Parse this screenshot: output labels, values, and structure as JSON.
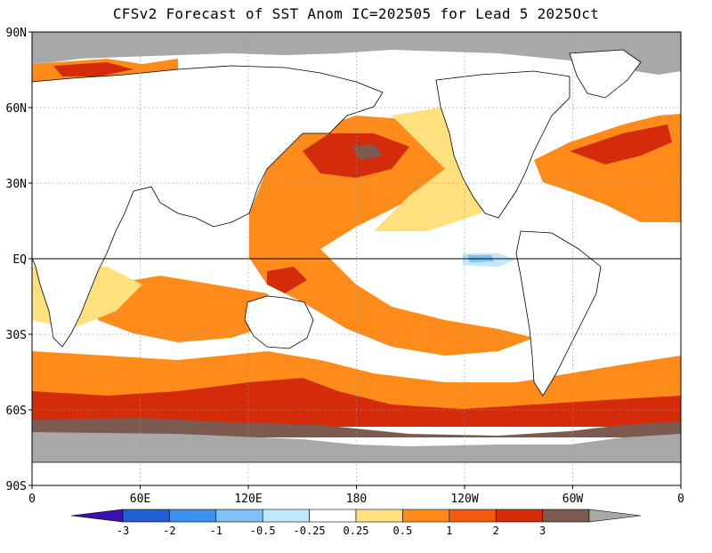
{
  "title": "CFSv2 Forecast of SST Anom IC=202505 for Lead 5 2025Oct",
  "y_ticks": [
    "90N",
    "60N",
    "30N",
    "EQ",
    "30S",
    "60S",
    "90S"
  ],
  "x_ticks": [
    "0",
    "60E",
    "120E",
    "180",
    "120W",
    "60W",
    "0"
  ],
  "colorbar": {
    "labels": [
      "-3",
      "-2",
      "-1",
      "-0.5",
      "-0.25",
      "0.25",
      "0.5",
      "1",
      "2",
      "3"
    ],
    "colors": [
      "#3c10b4",
      "#1f5fcf",
      "#3d8ff0",
      "#7fc1f5",
      "#bfe9fb",
      "#ffffff",
      "#ffe07f",
      "#ff8c1a",
      "#f25a10",
      "#d42b0a",
      "#7d5a50",
      "#a8a8a8"
    ]
  },
  "land_color": "#ffffff",
  "sea_ice_color": "#a8a8a8"
}
